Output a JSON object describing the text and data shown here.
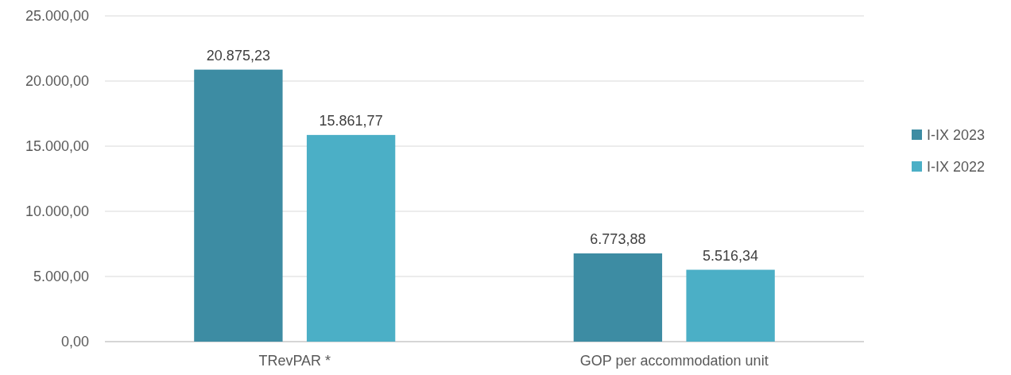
{
  "chart_data": {
    "type": "bar",
    "categories": [
      "TRevPAR *",
      "GOP per accommodation unit"
    ],
    "series": [
      {
        "name": "I-IX 2023",
        "color": "#3d8ca3",
        "values": [
          20875.23,
          6773.88
        ],
        "value_labels": [
          "20.875,23",
          "6.773,88"
        ]
      },
      {
        "name": "I-IX 2022",
        "color": "#4bafc6",
        "values": [
          15861.77,
          5516.34
        ],
        "value_labels": [
          "15.861,77",
          "5.516,34"
        ]
      }
    ],
    "ylim": [
      0,
      25000
    ],
    "yticks": [
      {
        "value": 0,
        "label": "0,00"
      },
      {
        "value": 5000,
        "label": "5.000,00"
      },
      {
        "value": 10000,
        "label": "10.000,00"
      },
      {
        "value": 15000,
        "label": "15.000,00"
      },
      {
        "value": 20000,
        "label": "20.000,00"
      },
      {
        "value": 25000,
        "label": "25.000,00"
      }
    ],
    "grid": "y",
    "legend": "right"
  }
}
